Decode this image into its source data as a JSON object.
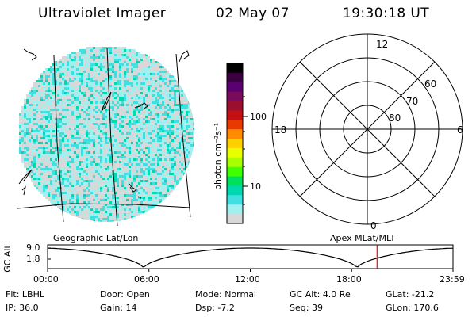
{
  "header": {
    "instrument": "Ultraviolet Imager",
    "date": "02 May 07",
    "time": "19:30:18 UT"
  },
  "colorbar": {
    "label": "photon cm⁻²s⁻¹",
    "ticks": [
      "100",
      "10"
    ],
    "colors": [
      "#000000",
      "#3a0040",
      "#5a0070",
      "#7a0b5a",
      "#9a0e2f",
      "#c41010",
      "#e83a00",
      "#ff8c00",
      "#ffd000",
      "#e8ff00",
      "#a8ff00",
      "#40ff00",
      "#00e060",
      "#00d8b0",
      "#40e0e0",
      "#a0f0f0",
      "#d8d8d8"
    ]
  },
  "globe": {
    "label": "Geographic Lat/Lon",
    "cell_colors": [
      "#d8d8d8",
      "#40e0e0",
      "#a0f0f0",
      "#00d8b0"
    ]
  },
  "polar": {
    "label": "Apex MLat/MLT",
    "mlt_labels": {
      "top": "12",
      "right": "6",
      "bottom": "0",
      "left": "18"
    },
    "lat_labels": [
      "60",
      "70",
      "80"
    ]
  },
  "timeline": {
    "ylabel": "GC Alt",
    "y_ticks": [
      "9.0",
      "1.8"
    ],
    "x_ticks": [
      "00:00",
      "06:00",
      "12:00",
      "18:00",
      "23:59"
    ],
    "current_time_frac": 0.8127,
    "marker_color": "#ff0000"
  },
  "info": {
    "row1": [
      {
        "label": "Flt:",
        "value": "LBHL"
      },
      {
        "label": "Door:",
        "value": "Open"
      },
      {
        "label": "Mode:",
        "value": "Normal"
      },
      {
        "label": "GC Alt:",
        "value": "4.0 Re"
      },
      {
        "label": "GLat:",
        "value": "-21.2"
      }
    ],
    "row2": [
      {
        "label": "IP:",
        "value": "36.0"
      },
      {
        "label": "Gain:",
        "value": "14"
      },
      {
        "label": "Dsp:",
        "value": "-7.2"
      },
      {
        "label": "Seq:",
        "value": "39"
      },
      {
        "label": "GLon:",
        "value": "170.6"
      }
    ]
  }
}
